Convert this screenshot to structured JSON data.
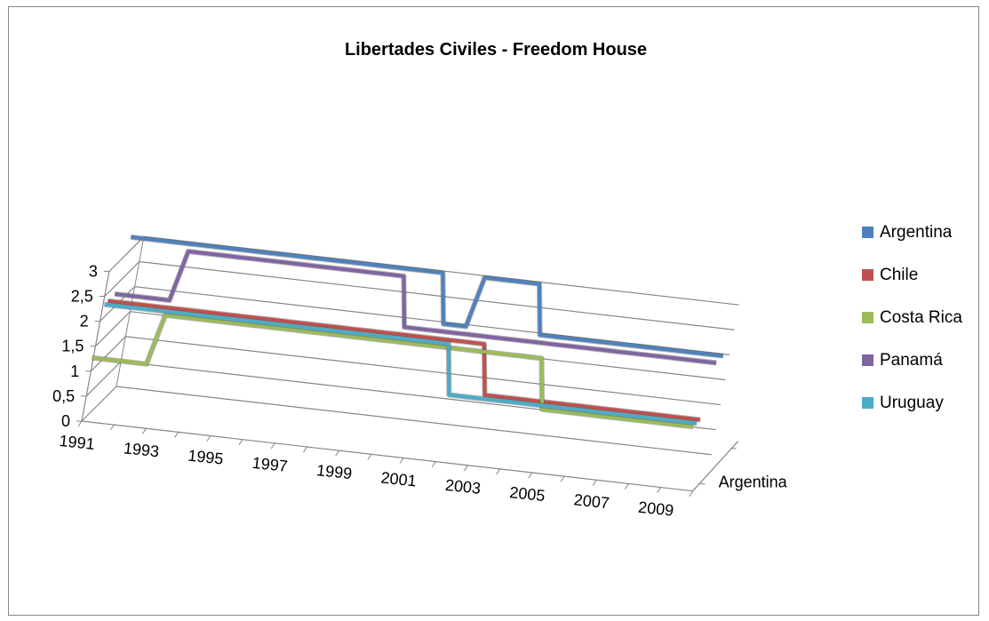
{
  "chart_data": {
    "type": "line",
    "title": "Libertades Civiles - Freedom House",
    "xlabel": "",
    "ylabel": "",
    "ylim": [
      0,
      3
    ],
    "y_ticks": [
      "0",
      "0,5",
      "1",
      "1,5",
      "2",
      "2,5",
      "3"
    ],
    "x_tick_labels": [
      "1991",
      "1993",
      "1995",
      "1997",
      "1999",
      "2001",
      "2003",
      "2005",
      "2007",
      "2009"
    ],
    "depth_axis_label": "Argentina",
    "grid": true,
    "legend_position": "right",
    "x": [
      1991,
      1992,
      1993,
      1994,
      1995,
      1996,
      1997,
      1998,
      1999,
      2000,
      2001,
      2002,
      2003,
      2004,
      2005,
      2006,
      2007,
      2008,
      2009
    ],
    "series": [
      {
        "name": "Argentina",
        "color": "#4F81BD",
        "values": [
          3,
          3,
          3,
          3,
          3,
          3,
          3,
          3,
          3,
          3,
          2,
          3,
          3,
          2,
          2,
          2,
          2,
          2,
          2
        ]
      },
      {
        "name": "Chile",
        "color": "#C0504D",
        "values": [
          2,
          2,
          2,
          2,
          2,
          2,
          2,
          2,
          2,
          2,
          2,
          2,
          1,
          1,
          1,
          1,
          1,
          1,
          1
        ]
      },
      {
        "name": "Costa Rica",
        "color": "#9BBB59",
        "values": [
          1,
          1,
          2,
          2,
          2,
          2,
          2,
          2,
          2,
          2,
          2,
          2,
          2,
          2,
          1,
          1,
          1,
          1,
          1
        ]
      },
      {
        "name": "Panamá",
        "color": "#8064A2",
        "values": [
          2,
          2,
          3,
          3,
          3,
          3,
          3,
          3,
          3,
          2,
          2,
          2,
          2,
          2,
          2,
          2,
          2,
          2,
          2
        ]
      },
      {
        "name": "Uruguay",
        "color": "#4BACC6",
        "values": [
          2,
          2,
          2,
          2,
          2,
          2,
          2,
          2,
          2,
          2,
          2,
          1,
          1,
          1,
          1,
          1,
          1,
          1,
          1
        ]
      }
    ]
  }
}
